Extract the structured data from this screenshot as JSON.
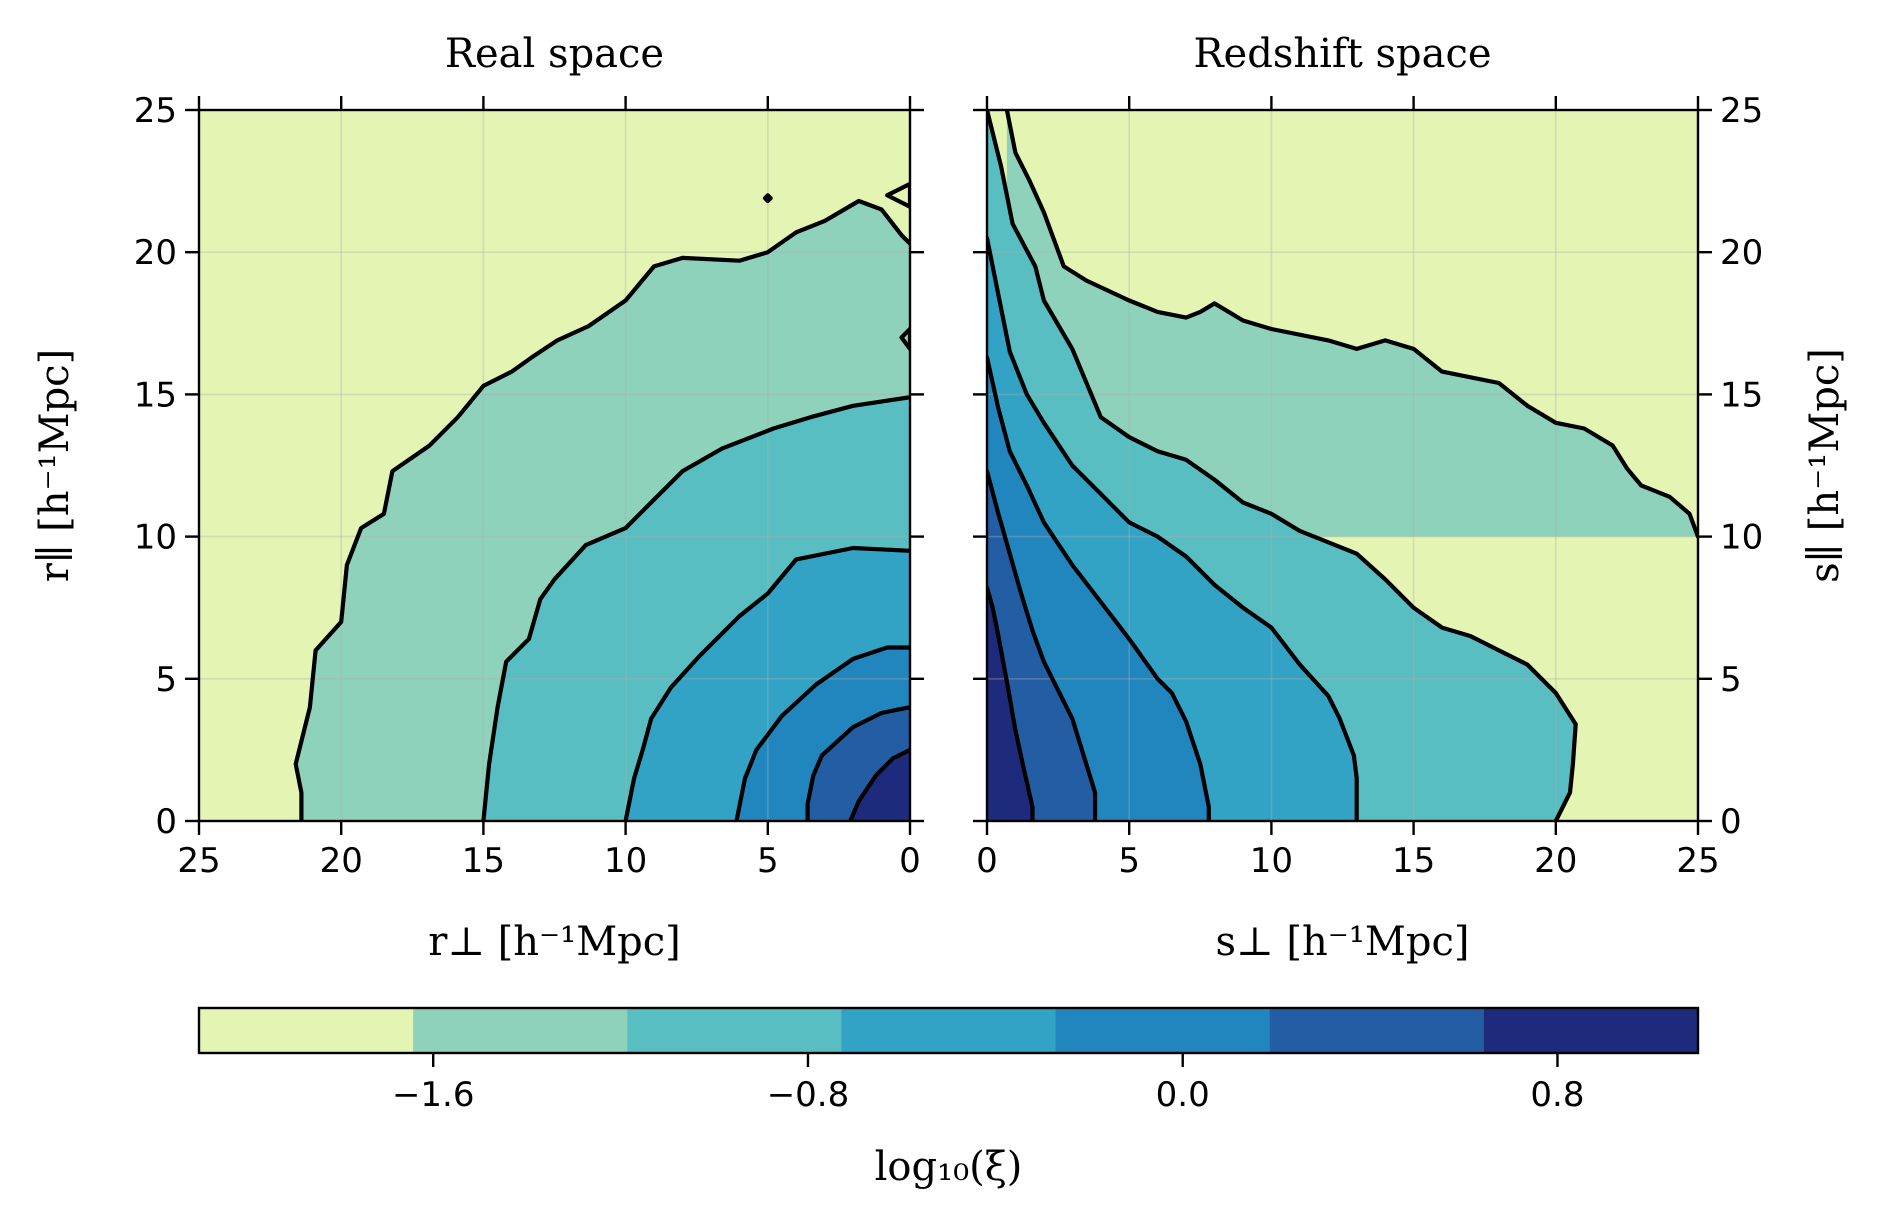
{
  "chart_data": [
    {
      "type": "contour",
      "title": "Real space",
      "xlabel": "r⊥ [h⁻¹Mpc]",
      "ylabel": "r∥ [h⁻¹Mpc]",
      "xlim": [
        25,
        0
      ],
      "ylim": [
        0,
        25
      ],
      "x_ticks": [
        25,
        20,
        15,
        10,
        5,
        0
      ],
      "y_ticks": [
        0,
        5,
        10,
        15,
        20,
        25
      ],
      "y_axis_side": "left",
      "grid": true,
      "contour_levels": [
        {
          "level_index": 1,
          "points": [
            [
              21.4,
              0
            ],
            [
              21.4,
              1.0
            ],
            [
              21.6,
              2.0
            ],
            [
              21.1,
              4.0
            ],
            [
              20.9,
              6.0
            ],
            [
              20.0,
              7.0
            ],
            [
              19.8,
              9.0
            ],
            [
              19.3,
              10.3
            ],
            [
              18.5,
              10.8
            ],
            [
              18.2,
              12.3
            ],
            [
              16.9,
              13.2
            ],
            [
              15.9,
              14.2
            ],
            [
              15.0,
              15.3
            ],
            [
              14.0,
              15.8
            ],
            [
              13.3,
              16.3
            ],
            [
              12.4,
              16.9
            ],
            [
              11.3,
              17.4
            ],
            [
              10.0,
              18.3
            ],
            [
              9.0,
              19.5
            ],
            [
              8.0,
              19.8
            ],
            [
              6.0,
              19.7
            ],
            [
              5.0,
              20.0
            ],
            [
              4.0,
              20.7
            ],
            [
              3.0,
              21.1
            ],
            [
              1.8,
              21.8
            ],
            [
              1.0,
              21.5
            ],
            [
              0.3,
              20.6
            ],
            [
              0,
              20.3
            ]
          ]
        },
        {
          "level_index": 2,
          "points": [
            [
              15.0,
              0
            ],
            [
              14.8,
              2.0
            ],
            [
              14.5,
              4.0
            ],
            [
              14.2,
              5.6
            ],
            [
              13.4,
              6.4
            ],
            [
              13.0,
              7.8
            ],
            [
              12.5,
              8.5
            ],
            [
              11.4,
              9.7
            ],
            [
              10.0,
              10.3
            ],
            [
              9.0,
              11.3
            ],
            [
              8.0,
              12.3
            ],
            [
              6.6,
              13.1
            ],
            [
              4.8,
              13.8
            ],
            [
              3.5,
              14.2
            ],
            [
              2.0,
              14.6
            ],
            [
              0,
              14.9
            ]
          ]
        },
        {
          "level_index": 3,
          "points": [
            [
              10.0,
              0
            ],
            [
              9.7,
              1.5
            ],
            [
              9.4,
              2.5
            ],
            [
              9.1,
              3.6
            ],
            [
              8.4,
              4.7
            ],
            [
              7.4,
              5.8
            ],
            [
              6.0,
              7.2
            ],
            [
              5.0,
              8.0
            ],
            [
              4.0,
              9.2
            ],
            [
              2.0,
              9.6
            ],
            [
              0,
              9.5
            ]
          ]
        },
        {
          "level_index": 4,
          "points": [
            [
              6.1,
              0
            ],
            [
              5.8,
              1.5
            ],
            [
              5.4,
              2.5
            ],
            [
              4.5,
              3.7
            ],
            [
              3.3,
              4.8
            ],
            [
              2.0,
              5.7
            ],
            [
              0.8,
              6.1
            ],
            [
              0,
              6.1
            ]
          ]
        },
        {
          "level_index": 5,
          "points": [
            [
              3.6,
              0
            ],
            [
              3.6,
              0.6
            ],
            [
              3.4,
              1.6
            ],
            [
              3.1,
              2.3
            ],
            [
              2.0,
              3.3
            ],
            [
              1.0,
              3.8
            ],
            [
              0,
              4.0
            ]
          ]
        },
        {
          "level_index": 6,
          "points": [
            [
              2.1,
              0
            ],
            [
              1.8,
              0.7
            ],
            [
              1.2,
              1.6
            ],
            [
              0.6,
              2.2
            ],
            [
              0,
              2.5
            ]
          ]
        }
      ],
      "contour_islands": [
        {
          "level_index": 1,
          "points": [
            [
              5.0,
              22.0
            ],
            [
              5.1,
              21.9
            ],
            [
              5.0,
              21.8
            ],
            [
              4.9,
              21.9
            ]
          ]
        },
        {
          "level_index": 1,
          "points": [
            [
              0,
              22.4
            ],
            [
              0.8,
              22.0
            ],
            [
              0,
              21.6
            ]
          ]
        },
        {
          "level_index": 2,
          "points": [
            [
              0,
              17.3
            ],
            [
              0.3,
              17.0
            ],
            [
              0,
              16.6
            ]
          ]
        }
      ]
    },
    {
      "type": "contour",
      "title": "Redshift space",
      "xlabel": "s⊥ [h⁻¹Mpc]",
      "ylabel": "s∥ [h⁻¹Mpc]",
      "xlim": [
        0,
        25
      ],
      "ylim": [
        0,
        25
      ],
      "x_ticks": [
        0,
        5,
        10,
        15,
        20,
        25
      ],
      "y_ticks": [
        0,
        5,
        10,
        15,
        20,
        25
      ],
      "y_axis_side": "right",
      "grid": true,
      "contour_levels": [
        {
          "level_index": 1,
          "points": [
            [
              0.7,
              25
            ],
            [
              1.0,
              23.5
            ],
            [
              1.5,
              22.5
            ],
            [
              2.0,
              21.4
            ],
            [
              2.7,
              19.5
            ],
            [
              3.5,
              19.0
            ],
            [
              5.0,
              18.3
            ],
            [
              6.0,
              17.9
            ],
            [
              7.0,
              17.7
            ],
            [
              7.5,
              17.9
            ],
            [
              8.0,
              18.2
            ],
            [
              8.5,
              17.9
            ],
            [
              9.0,
              17.6
            ],
            [
              10.0,
              17.3
            ],
            [
              12.0,
              16.9
            ],
            [
              13.0,
              16.6
            ],
            [
              14.0,
              16.9
            ],
            [
              15.0,
              16.6
            ],
            [
              16.0,
              15.8
            ],
            [
              17.0,
              15.6
            ],
            [
              18.0,
              15.4
            ],
            [
              19.0,
              14.6
            ],
            [
              20.0,
              14.0
            ],
            [
              21.0,
              13.8
            ],
            [
              22.0,
              13.2
            ],
            [
              22.5,
              12.4
            ],
            [
              23.0,
              11.8
            ],
            [
              24.0,
              11.4
            ],
            [
              24.7,
              10.8
            ],
            [
              25,
              10.0
            ]
          ]
        },
        {
          "level_index": 2,
          "points": [
            [
              0,
              25.0
            ],
            [
              0.5,
              23.0
            ],
            [
              0.9,
              21.0
            ],
            [
              1.7,
              19.5
            ],
            [
              2.0,
              18.3
            ],
            [
              3.0,
              16.6
            ],
            [
              4.0,
              14.2
            ],
            [
              5.0,
              13.5
            ],
            [
              6.0,
              13.0
            ],
            [
              7.0,
              12.7
            ],
            [
              8.0,
              12.0
            ],
            [
              9.0,
              11.2
            ],
            [
              10.0,
              10.8
            ],
            [
              11.0,
              10.2
            ],
            [
              12.0,
              9.8
            ],
            [
              13.0,
              9.4
            ],
            [
              14.0,
              8.5
            ],
            [
              15.0,
              7.5
            ],
            [
              16.0,
              6.8
            ],
            [
              17.0,
              6.5
            ],
            [
              18.0,
              6.0
            ],
            [
              19.0,
              5.5
            ],
            [
              20.0,
              4.5
            ],
            [
              20.7,
              3.4
            ],
            [
              20.6,
              2.0
            ],
            [
              20.5,
              1.0
            ],
            [
              20.0,
              0
            ]
          ]
        },
        {
          "level_index": 3,
          "points": [
            [
              0,
              20.5
            ],
            [
              0.4,
              18.5
            ],
            [
              0.8,
              16.5
            ],
            [
              1.4,
              15.0
            ],
            [
              2.0,
              14.0
            ],
            [
              3.0,
              12.5
            ],
            [
              4.0,
              11.5
            ],
            [
              5.0,
              10.5
            ],
            [
              6.0,
              10.0
            ],
            [
              7.0,
              9.3
            ],
            [
              8.0,
              8.3
            ],
            [
              9.0,
              7.5
            ],
            [
              10.0,
              6.8
            ],
            [
              11.0,
              5.5
            ],
            [
              12.0,
              4.4
            ],
            [
              12.4,
              3.6
            ],
            [
              12.9,
              2.3
            ],
            [
              13.0,
              1.5
            ],
            [
              13.0,
              0
            ]
          ]
        },
        {
          "level_index": 4,
          "points": [
            [
              0,
              16.3
            ],
            [
              0.4,
              14.5
            ],
            [
              0.8,
              13.0
            ],
            [
              1.4,
              11.8
            ],
            [
              2.0,
              10.5
            ],
            [
              3.0,
              9.0
            ],
            [
              4.0,
              7.7
            ],
            [
              5.0,
              6.4
            ],
            [
              6.0,
              5.0
            ],
            [
              6.5,
              4.5
            ],
            [
              7.0,
              3.5
            ],
            [
              7.5,
              2.0
            ],
            [
              7.8,
              0.5
            ],
            [
              7.8,
              0
            ]
          ]
        },
        {
          "level_index": 5,
          "points": [
            [
              0,
              12.3
            ],
            [
              0.4,
              10.8
            ],
            [
              0.8,
              9.4
            ],
            [
              1.2,
              8.0
            ],
            [
              1.6,
              6.7
            ],
            [
              2.0,
              5.6
            ],
            [
              2.5,
              4.6
            ],
            [
              3.0,
              3.6
            ],
            [
              3.4,
              2.3
            ],
            [
              3.8,
              1.0
            ],
            [
              3.8,
              0
            ]
          ]
        },
        {
          "level_index": 6,
          "points": [
            [
              0,
              8.2
            ],
            [
              0.2,
              7.5
            ],
            [
              0.4,
              6.5
            ],
            [
              0.7,
              4.9
            ],
            [
              1.0,
              3.2
            ],
            [
              1.3,
              1.8
            ],
            [
              1.6,
              0.5
            ],
            [
              1.6,
              0
            ]
          ]
        }
      ],
      "contour_islands": []
    }
  ],
  "colorbar": {
    "label": "log₁₀(ξ)",
    "tick_values": [
      -1.6,
      -0.8,
      0.0,
      0.8
    ],
    "tick_labels": [
      "−1.6",
      "−0.8",
      "0.0",
      "0.8"
    ],
    "range": [
      -2.1,
      1.1
    ],
    "colors": [
      "#e3f4b3",
      "#8fd2bb",
      "#59bec1",
      "#32a3c5",
      "#2186bd",
      "#235ea5",
      "#1e2b7c"
    ]
  }
}
